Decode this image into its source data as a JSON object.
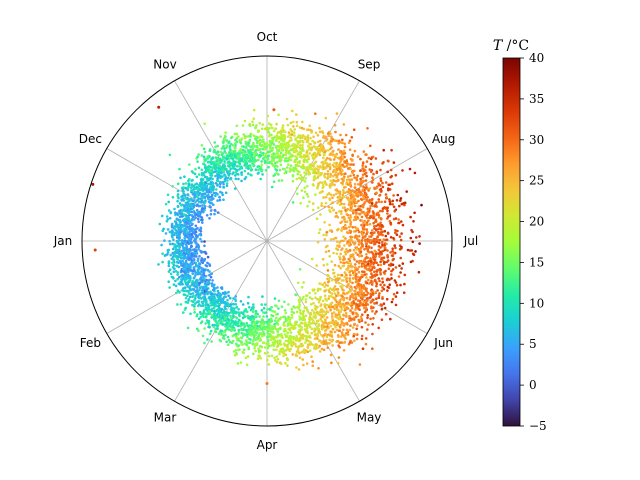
{
  "chart_data": {
    "type": "scatter",
    "projection": "polar",
    "angular_axis": {
      "tick_labels": [
        "Jan",
        "Feb",
        "Mar",
        "Apr",
        "May",
        "Jun",
        "Jul",
        "Aug",
        "Sep",
        "Oct",
        "Nov",
        "Dec"
      ],
      "direction": "counter-clockwise",
      "grid": true
    },
    "radial_axis": {
      "tick_labels": [],
      "grid": false
    },
    "colorbar": {
      "label": "T /°C",
      "label_symbol": "T",
      "label_unit": " /°C",
      "range": [
        -5,
        40
      ],
      "ticks": [
        -5,
        0,
        5,
        10,
        15,
        20,
        25,
        30,
        35,
        40
      ],
      "tick_labels": [
        "−5",
        "0",
        "5",
        "10",
        "15",
        "20",
        "25",
        "30",
        "35",
        "40"
      ],
      "colormap": "turbo",
      "colormap_stops": [
        "#30123b",
        "#4145ab",
        "#4675ed",
        "#39a2fc",
        "#1bcfd4",
        "#24eca6",
        "#61fc6c",
        "#a4fc3b",
        "#d1e834",
        "#f3c63a",
        "#fe9b2d",
        "#f36315",
        "#d93806",
        "#b11901",
        "#7a0403"
      ]
    },
    "point_cloud": {
      "description_of_distribution": "annual ring; mean radius ~0.51 of axis radius, centre offset toward Jul",
      "count": 5200,
      "ring_radius_fraction": 0.51,
      "ring_spread_fraction": 0.09,
      "center_offset_fraction": 0.06,
      "temperature_min_at_month": "Jan",
      "temperature_max_at_month": "Jul",
      "temperature_mean": 17.5,
      "temperature_amplitude": 12.5
    },
    "outliers": [
      {
        "month_position": 10.3,
        "radius_fraction": 0.93,
        "temperature": 36
      },
      {
        "month_position": 11.4,
        "radius_fraction": 0.99,
        "temperature": 37
      },
      {
        "month_position": 0.1,
        "radius_fraction": 0.93,
        "temperature": 33
      },
      {
        "month_position": 3.0,
        "radius_fraction": 0.77,
        "temperature": 29
      },
      {
        "month_position": 8.9,
        "radius_fraction": 0.71,
        "temperature": 31
      }
    ]
  }
}
